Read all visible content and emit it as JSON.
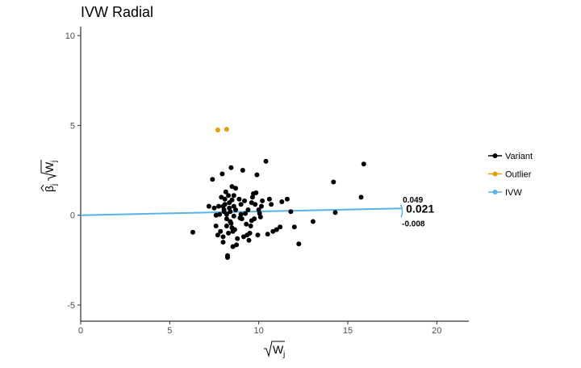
{
  "chart_data": {
    "type": "scatter",
    "title": "IVW Radial",
    "xlabel": {
      "main": "W",
      "subscript": "j",
      "radical": true
    },
    "ylabel": {
      "main": "β",
      "subscript": "j",
      "hat": true,
      "times_sqrt": "W",
      "times_sqrt_subscript": "j"
    },
    "xlim": [
      0,
      21.8
    ],
    "ylim": [
      -5.9,
      10.5
    ],
    "x_ticks": [
      0,
      5,
      10,
      15,
      20
    ],
    "y_ticks": [
      -5,
      0,
      5,
      10
    ],
    "x_tick_labels": [
      "0",
      "5",
      "10",
      "15",
      "20"
    ],
    "y_tick_labels": [
      "-5",
      "0",
      "5",
      "10"
    ],
    "grid": false,
    "legend_position": "right",
    "legend": [
      {
        "name": "Variant",
        "color": "#000000"
      },
      {
        "name": "Outlier",
        "color": "#E69F00"
      },
      {
        "name": "IVW",
        "color": "#56B4E9"
      }
    ],
    "series": [
      {
        "name": "Variant",
        "color": "#000000",
        "points": [
          [
            6.3,
            -0.95
          ],
          [
            7.2,
            0.5
          ],
          [
            7.4,
            2.0
          ],
          [
            7.5,
            0.4
          ],
          [
            7.6,
            -0.6
          ],
          [
            7.7,
            -1.1
          ],
          [
            7.75,
            0.5
          ],
          [
            7.8,
            0.05
          ],
          [
            7.85,
            -0.9
          ],
          [
            7.9,
            1.0
          ],
          [
            7.95,
            2.3
          ],
          [
            8.0,
            -1.5
          ],
          [
            8.0,
            -1.2
          ],
          [
            8.05,
            0.3
          ],
          [
            8.1,
            0.9
          ],
          [
            8.1,
            0.6
          ],
          [
            8.15,
            1.3
          ],
          [
            8.2,
            -0.2
          ],
          [
            8.2,
            -0.6
          ],
          [
            8.25,
            -2.25
          ],
          [
            8.25,
            -2.35
          ],
          [
            8.3,
            1.1
          ],
          [
            8.3,
            -1.0
          ],
          [
            8.35,
            0.7
          ],
          [
            8.4,
            0.2
          ],
          [
            8.4,
            -0.35
          ],
          [
            8.45,
            2.65
          ],
          [
            8.5,
            1.6
          ],
          [
            8.5,
            -0.7
          ],
          [
            8.55,
            -1.75
          ],
          [
            8.6,
            -0.05
          ],
          [
            8.6,
            0.5
          ],
          [
            8.65,
            -0.8
          ],
          [
            8.7,
            1.5
          ],
          [
            8.7,
            0.3
          ],
          [
            8.75,
            -1.65
          ],
          [
            8.8,
            -1.3
          ],
          [
            8.9,
            0.9
          ],
          [
            8.95,
            -0.15
          ],
          [
            9.0,
            0.6
          ],
          [
            9.05,
            -0.2
          ],
          [
            9.1,
            2.5
          ],
          [
            9.15,
            -1.2
          ],
          [
            9.2,
            0.8
          ],
          [
            9.25,
            0.1
          ],
          [
            9.3,
            -0.5
          ],
          [
            9.4,
            0.3
          ],
          [
            9.45,
            -1.4
          ],
          [
            9.5,
            -1.0
          ],
          [
            9.55,
            -0.6
          ],
          [
            9.6,
            0.7
          ],
          [
            9.65,
            1.0
          ],
          [
            9.7,
            1.2
          ],
          [
            9.75,
            -0.2
          ],
          [
            9.8,
            0.6
          ],
          [
            9.85,
            1.25
          ],
          [
            9.9,
            2.25
          ],
          [
            9.95,
            -1.1
          ],
          [
            10.0,
            0.3
          ],
          [
            10.05,
            0.1
          ],
          [
            10.1,
            -0.1
          ],
          [
            10.15,
            0.5
          ],
          [
            10.2,
            0.8
          ],
          [
            10.4,
            3.0
          ],
          [
            10.6,
            0.9
          ],
          [
            10.7,
            0.6
          ],
          [
            10.8,
            -0.9
          ],
          [
            11.0,
            -0.8
          ],
          [
            11.2,
            -0.65
          ],
          [
            11.3,
            0.75
          ],
          [
            11.6,
            0.9
          ],
          [
            11.8,
            0.2
          ],
          [
            12.0,
            -0.65
          ],
          [
            12.25,
            -1.6
          ],
          [
            13.05,
            -0.35
          ],
          [
            14.2,
            1.85
          ],
          [
            14.3,
            0.15
          ],
          [
            15.75,
            1.0
          ],
          [
            15.9,
            2.85
          ],
          [
            8.0,
            0.5
          ],
          [
            8.2,
            0.05
          ],
          [
            8.35,
            0.4
          ],
          [
            8.45,
            -0.45
          ],
          [
            8.5,
            0.85
          ],
          [
            8.55,
            -0.9
          ],
          [
            9.0,
            0.05
          ],
          [
            9.35,
            -1.1
          ],
          [
            9.6,
            -0.3
          ],
          [
            10.5,
            -1.05
          ],
          [
            7.6,
            0.0
          ],
          [
            8.05,
            0.2
          ],
          [
            8.6,
            1.1
          ]
        ]
      },
      {
        "name": "Outlier",
        "color": "#E69F00",
        "points": [
          [
            7.7,
            4.75
          ],
          [
            8.2,
            4.78
          ]
        ]
      }
    ],
    "ivw": {
      "name": "IVW",
      "color": "#56B4E9",
      "x_end": 18.0,
      "estimate": 0.021,
      "ci_upper": 0.049,
      "ci_lower": -0.008,
      "estimate_label": "0.021",
      "ci_upper_label": "0.049",
      "ci_lower_label": "-0.008"
    }
  }
}
